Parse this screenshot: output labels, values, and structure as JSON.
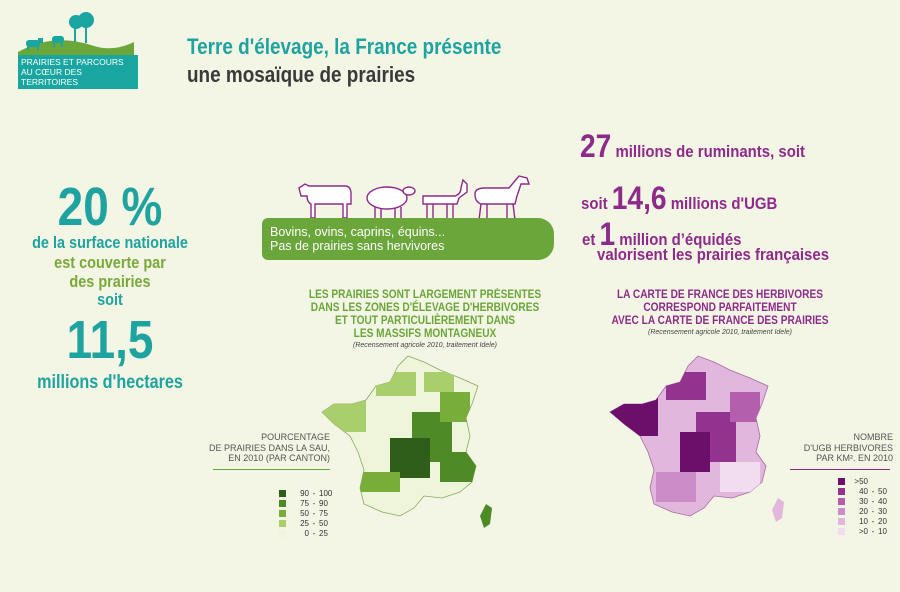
{
  "logo": {
    "text": "PRAIRIES ET PARCOURS AU CŒUR DES TERRITOIRES"
  },
  "title": {
    "line1": "Terre d'élevage, la France présente",
    "line2": "une mosaïque de prairies"
  },
  "left_stats": {
    "percent": "20 %",
    "line1": "de la surface nationale",
    "line2": "est couverte par",
    "line3": "des prairies",
    "line4": "soit",
    "hectares": "11,5",
    "hectares_label": "millions d'hectares"
  },
  "banner": {
    "line1": "Bovins, ovins, caprins, équins...",
    "line2": "Pas de prairies sans hervivores"
  },
  "right_stats": {
    "r1_num": "27",
    "r1_text": " millions de ruminants, soit",
    "r2_prefix": "soit ",
    "r2_num": "14,6",
    "r2_text": " millions d'UGB",
    "r3_prefix": "et ",
    "r3_num": "1",
    "r3_text": " million d’équidés",
    "r4_text": "valorisent les prairies françaises"
  },
  "green_section": {
    "heading_1": "LES PRAIRIES SONT LARGEMENT PRÉSENTES",
    "heading_2": "DANS LES ZONES D'ÉLEVAGE D'HERBIVORES",
    "heading_3": "ET TOUT PARTICULIÈREMENT DANS",
    "heading_4": "LES MASSIFS MONTAGNEUX",
    "source": "(Recensement agricole 2010, traitement Idele)"
  },
  "purple_section": {
    "heading_1": "LA CARTE DE FRANCE DES HERBIVORES",
    "heading_2": "CORRESPOND PARFAITEMENT",
    "heading_3": "AVEC LA CARTE DE FRANCE DES PRAIRIES",
    "source": "(Recensement agricole 2010, traitement Idele)"
  },
  "green_legend": {
    "title_1": "POURCENTAGE",
    "title_2": "DE PRAIRIES DANS LA SAU,",
    "title_3": "EN 2010 (PAR CANTON)",
    "items": [
      {
        "lo": "90",
        "hi": "100",
        "color": "#2f5e1a"
      },
      {
        "lo": "75",
        "hi": "90",
        "color": "#4e8a25"
      },
      {
        "lo": "50",
        "hi": "75",
        "color": "#79ad3a"
      },
      {
        "lo": "25",
        "hi": "50",
        "color": "#a8cf6b"
      },
      {
        "lo": "0",
        "hi": "25",
        "color": "#eef5da"
      }
    ]
  },
  "purple_legend": {
    "title_1": "NOMBRE",
    "title_2": "D'UGB HERBIVORES",
    "title_3": "PAR KM². EN 2010",
    "items": [
      {
        "lo": ">50",
        "hi": "",
        "color": "#6b0f6b"
      },
      {
        "lo": "40",
        "hi": "50",
        "color": "#93338f"
      },
      {
        "lo": "30",
        "hi": "40",
        "color": "#b35fae"
      },
      {
        "lo": "20",
        "hi": "30",
        "color": "#cc8cc8"
      },
      {
        "lo": "10",
        "hi": "20",
        "color": "#e1b7de"
      },
      {
        "lo": ">0",
        "hi": "10",
        "color": "#f2dcef"
      }
    ]
  },
  "colors": {
    "teal": "#1fa3a0",
    "green": "#6aa63a",
    "purple": "#8e2a8a",
    "background": "#f3f6e4"
  },
  "icons": {
    "logo": "farm-landscape-icon",
    "animals": [
      "cow-icon",
      "sheep-icon",
      "goat-icon",
      "horse-icon"
    ]
  }
}
